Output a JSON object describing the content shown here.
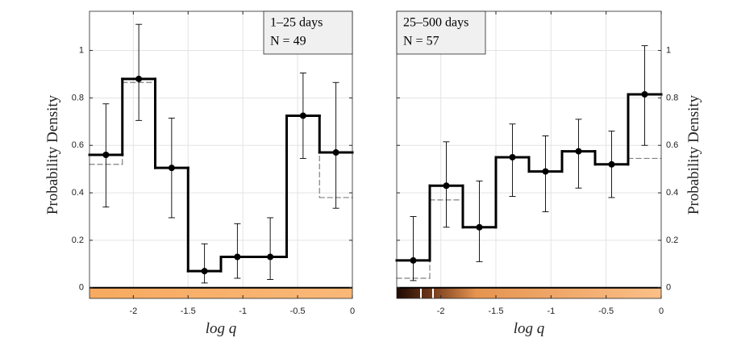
{
  "chart_data": [
    {
      "type": "histogram",
      "legend": [
        "1–25 days",
        "N = 49"
      ],
      "xlabel": "log q",
      "ylabel": "Probability Density",
      "y_axis_side": "left",
      "legend_corner": "upper right",
      "grid": true,
      "color": "#000000",
      "reference_color": "#808080",
      "bins": [
        -2.4,
        -2.1,
        -1.8,
        -1.5,
        -1.2,
        -0.9,
        -0.6,
        -0.3,
        0
      ],
      "values": [
        0.56,
        0.88,
        0.505,
        0.07,
        0.13,
        0.13,
        0.725,
        0.57
      ],
      "lower": [
        0.34,
        0.705,
        0.295,
        0.02,
        0.04,
        0.035,
        0.545,
        0.335
      ],
      "upper": [
        0.775,
        1.11,
        0.715,
        0.185,
        0.27,
        0.295,
        0.905,
        0.865
      ],
      "reference_values": [
        0.52,
        0.865,
        0.505,
        0.07,
        0.13,
        0.13,
        0.725,
        0.38
      ],
      "xlim": [
        -2.4,
        0
      ],
      "xticks": [
        -2,
        -1.5,
        -1,
        -0.5,
        0
      ],
      "ylim": [
        -0.045,
        1.165
      ],
      "yticks": [
        0,
        0.2,
        0.4,
        0.6,
        0.8,
        1
      ]
    },
    {
      "type": "histogram",
      "legend": [
        "25–500 days",
        "N = 57"
      ],
      "xlabel": "log q",
      "ylabel": "Probability Density",
      "y_axis_side": "right",
      "legend_corner": "upper left",
      "grid": true,
      "color": "#000000",
      "reference_color": "#808080",
      "bins": [
        -2.4,
        -2.1,
        -1.8,
        -1.5,
        -1.2,
        -0.9,
        -0.6,
        -0.3,
        0
      ],
      "values": [
        0.115,
        0.43,
        0.255,
        0.55,
        0.49,
        0.575,
        0.52,
        0.815
      ],
      "lower": [
        0.03,
        0.255,
        0.11,
        0.385,
        0.32,
        0.42,
        0.38,
        0.6
      ],
      "upper": [
        0.3,
        0.615,
        0.45,
        0.69,
        0.64,
        0.71,
        0.66,
        1.02
      ],
      "reference_values": [
        0.04,
        0.37,
        0.255,
        0.55,
        0.49,
        0.575,
        0.52,
        0.545
      ],
      "xlim": [
        -2.4,
        0
      ],
      "xticks": [
        -2,
        -1.5,
        -1,
        -0.5,
        0
      ],
      "ylim": [
        -0.045,
        1.165
      ],
      "yticks": [
        0,
        0.2,
        0.4,
        0.6,
        0.8,
        1
      ]
    }
  ]
}
